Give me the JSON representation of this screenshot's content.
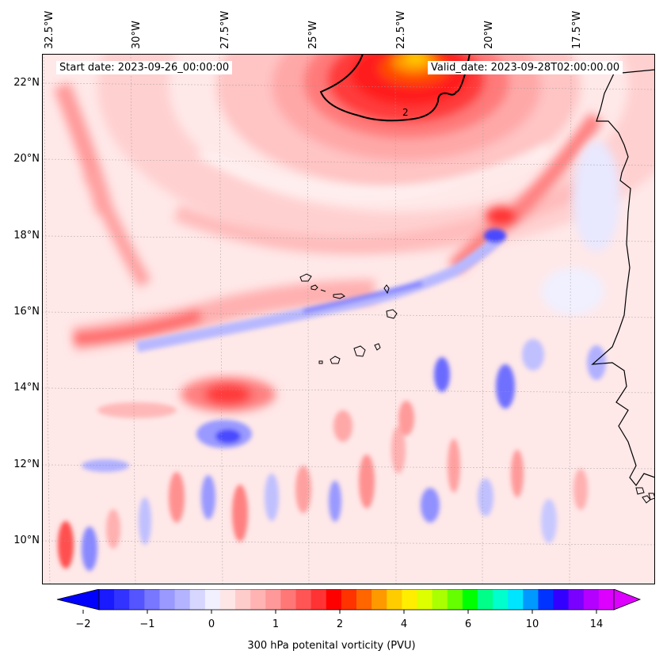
{
  "map": {
    "lon_labels": [
      "32.5°W",
      "30°W",
      "27.5°W",
      "25°W",
      "22.5°W",
      "20°W",
      "17.5°W"
    ],
    "lat_labels": [
      "22°N",
      "20°N",
      "18°N",
      "16°N",
      "14°N",
      "12°N",
      "10°N"
    ],
    "start_date": "Start date: 2023-09-26_00:00:00",
    "valid_date": "Valid_date: 2023-09-28T02:00:00.00",
    "contour_label": "2",
    "extent": {
      "lon_min": -33.0,
      "lon_max": -15.5,
      "lat_min": 8.8,
      "lat_max": 22.8
    }
  },
  "colorbar": {
    "label": "300 hPa potenital vorticity (PVU)",
    "ticks": [
      "−2",
      "−1",
      "0",
      "1",
      "2",
      "4",
      "6",
      "10",
      "14"
    ],
    "colors": [
      "#1a1aff",
      "#3333ff",
      "#5555ff",
      "#7777ff",
      "#9999ff",
      "#b3b3ff",
      "#d6d6ff",
      "#f0f0ff",
      "#ffe6e6",
      "#ffcccc",
      "#ffb3b3",
      "#ff9999",
      "#ff7777",
      "#ff5555",
      "#ff3333",
      "#ff0000",
      "#ff3300",
      "#ff6600",
      "#ff9900",
      "#ffcc00",
      "#ffee00",
      "#ddff00",
      "#aaff00",
      "#66ff00",
      "#00ff00",
      "#00ff88",
      "#00ffcc",
      "#00e5ff",
      "#0099ff",
      "#0033ff",
      "#3300ff",
      "#7a00ff",
      "#b300ff",
      "#dd00ff"
    ],
    "min_color": "#0000ff",
    "max_color": "#dd00ff"
  }
}
